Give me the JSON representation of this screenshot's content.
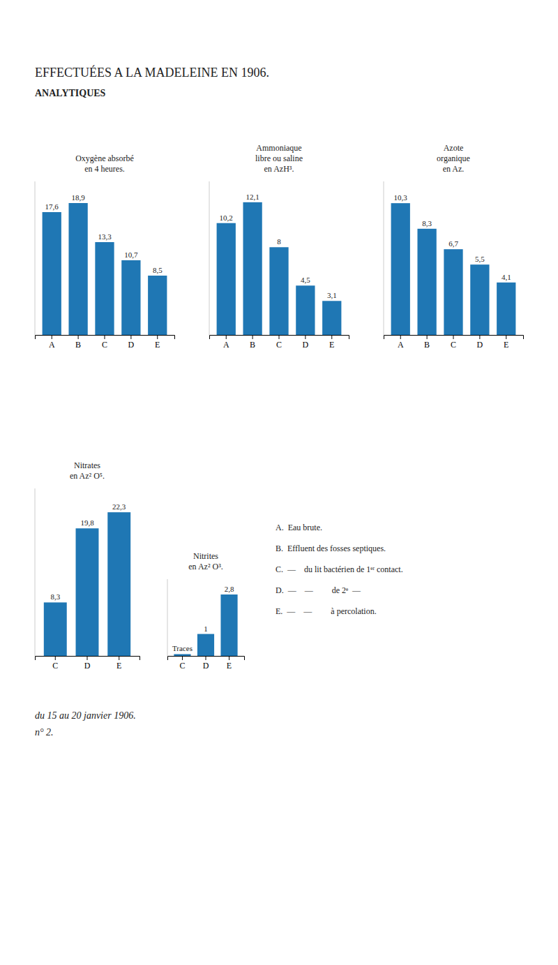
{
  "title": "EFFECTUÉES A LA MADELEINE EN 1906.",
  "subtitle": "ANALYTIQUES",
  "annotations": [
    "A.  Eau brute.",
    "B.  Effluent des fosses septiques.",
    "C.  —    du lit bactérien de 1ᵉʳ contact.",
    "D.  —    —         de 2ᵉ  —",
    "E.  —    —         à percolation.",
    "du 15 au 20 janvier 1906.",
    "n° 2."
  ],
  "chart_data": [
    {
      "type": "bar",
      "title": [
        "Oxygène absorbé",
        "en 4 heures."
      ],
      "categories": [
        "A",
        "B",
        "C",
        "D",
        "E"
      ],
      "values": [
        17.6,
        18.9,
        13.3,
        10.7,
        8.5
      ],
      "value_labels": [
        "17,6",
        "18,9",
        "13,3",
        "10,7",
        "8,5"
      ],
      "data_labels": true,
      "ylim": [
        0,
        22
      ],
      "tick_labels": "x"
    },
    {
      "type": "bar",
      "title": [
        "Ammoniaque",
        "libre ou saline",
        "en AzH³."
      ],
      "categories": [
        "A",
        "B",
        "C",
        "D",
        "E"
      ],
      "values": [
        10.2,
        12.1,
        8.0,
        4.5,
        3.1
      ],
      "value_labels": [
        "10,2",
        "12,1",
        "8",
        "4,5",
        "3,1"
      ],
      "data_labels": true,
      "ylim": [
        0,
        14
      ],
      "tick_labels": "x"
    },
    {
      "type": "bar",
      "title": [
        "Azote",
        "organique",
        "en Az."
      ],
      "categories": [
        "A",
        "B",
        "C",
        "D",
        "E"
      ],
      "values": [
        10.3,
        8.3,
        6.7,
        5.5,
        4.1
      ],
      "value_labels": [
        "10,3",
        "8,3",
        "6,7",
        "5,5",
        "4,1"
      ],
      "data_labels": true,
      "ylim": [
        0,
        12
      ],
      "tick_labels": "x"
    },
    {
      "type": "bar",
      "title": [
        "Nitrates",
        "en Az² O⁵."
      ],
      "categories": [
        "C",
        "D",
        "E"
      ],
      "values": [
        8.3,
        19.8,
        22.3
      ],
      "value_labels": [
        "8,3",
        "19,8",
        "22,3"
      ],
      "data_labels": true,
      "ylim": [
        0,
        26
      ],
      "tick_labels": "x"
    },
    {
      "type": "bar",
      "title": [
        "Nitrites",
        "en Az² O³."
      ],
      "categories": [
        "C",
        "D",
        "E"
      ],
      "values": [
        0.08,
        1.0,
        2.8
      ],
      "value_labels": [
        "Traces",
        "1",
        "2,8"
      ],
      "data_labels": true,
      "ylim": [
        0,
        3.5
      ],
      "tick_labels": "x"
    }
  ]
}
